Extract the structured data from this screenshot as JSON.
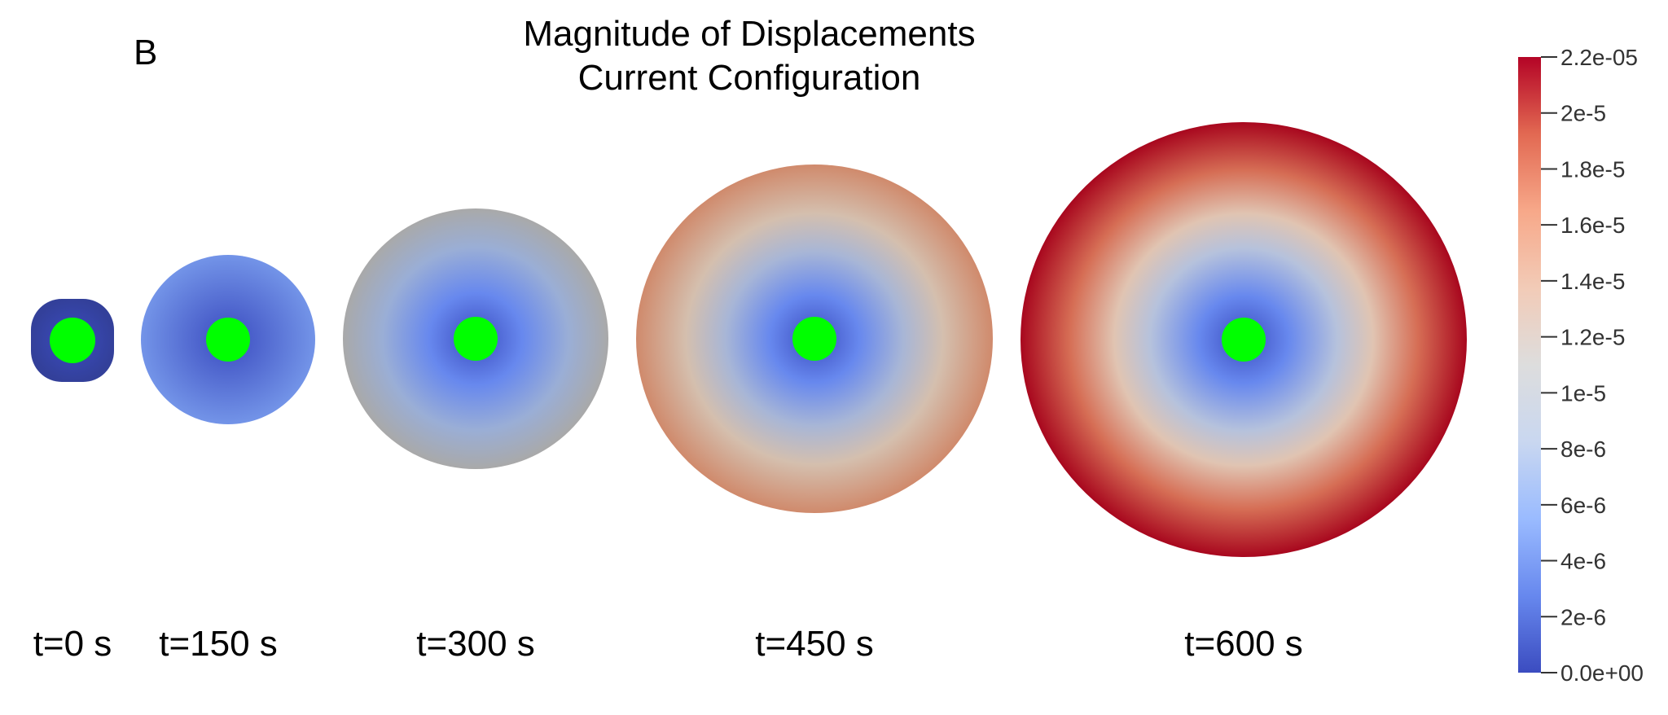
{
  "figure": {
    "panel_label": "B",
    "title_line1": "Magnitude of Displacements",
    "title_line2": "Current Configuration"
  },
  "snapshots": [
    {
      "label": "t=0 s",
      "edge_level": 0.1
    },
    {
      "label": "t=150 s",
      "edge_level": 0.22
    },
    {
      "label": "t=300 s",
      "edge_level": 0.5
    },
    {
      "label": "t=450 s",
      "edge_level": 0.74
    },
    {
      "label": "t=600 s",
      "edge_level": 1.0
    }
  ],
  "colorbar": {
    "min_label": "0.0e+00",
    "max_label": "2.2e-05",
    "ticks": [
      "2e-6",
      "4e-6",
      "6e-6",
      "8e-6",
      "1e-5",
      "1.2e-5",
      "1.4e-5",
      "1.6e-5",
      "1.8e-5",
      "2e-5"
    ],
    "tick_values": [
      2e-06,
      4e-06,
      6e-06,
      8e-06,
      1e-05,
      1.2e-05,
      1.4e-05,
      1.6e-05,
      1.8e-05,
      2e-05
    ],
    "range": [
      0,
      2.2e-05
    ],
    "colormap": [
      "#3b4cc0",
      "#6788ee",
      "#9abbff",
      "#c9d7f0",
      "#dddddd",
      "#f2cbb7",
      "#f7a889",
      "#e26952",
      "#b40426"
    ],
    "inclusion_color": "#00ff00"
  }
}
